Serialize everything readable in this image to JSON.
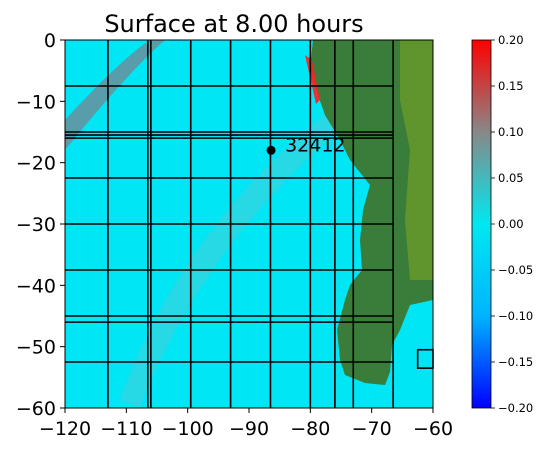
{
  "chart_data": {
    "type": "heatmap",
    "title": "Surface at 8.00 hours",
    "xlabel": "",
    "ylabel": "",
    "xlim": [
      -120,
      -60
    ],
    "ylim": [
      -60,
      0
    ],
    "x_ticks": [
      -120,
      -110,
      -100,
      -90,
      -80,
      -70,
      -60
    ],
    "y_ticks": [
      0,
      -10,
      -20,
      -30,
      -40,
      -50,
      -60
    ],
    "x_tick_labels": [
      "−120",
      "−110",
      "−100",
      "−90",
      "−80",
      "−70",
      "−60"
    ],
    "y_tick_labels": [
      "0",
      "−10",
      "−20",
      "−30",
      "−40",
      "−50",
      "−60"
    ],
    "colorbar": {
      "range": [
        -0.2,
        0.2
      ],
      "ticks": [
        0.2,
        0.15,
        0.1,
        0.05,
        0.0,
        -0.05,
        -0.1,
        -0.15,
        -0.2
      ],
      "tick_labels": [
        "0.20",
        "0.15",
        "0.10",
        "0.05",
        "0.00",
        "−0.05",
        "−0.10",
        "−0.15",
        "−0.20"
      ],
      "colors": [
        "#0000ff",
        "#00b4ff",
        "#00e8f0",
        "#888888",
        "#ff0000"
      ]
    },
    "gauge": {
      "label": "32412",
      "x": -86.4,
      "y": -17.98,
      "color": "#000000"
    },
    "grid_lines_x": [
      -113,
      -106.5,
      -106,
      -99.5,
      -93,
      -86.5,
      -80,
      -76,
      -73,
      -66.5
    ],
    "grid_lines_y": [
      -7.5,
      -15,
      -15.5,
      -16,
      -22.5,
      -30,
      -37.5,
      -45,
      -46,
      -52.5
    ],
    "highlight_box": {
      "x": [
        -62.5,
        -60
      ],
      "y": [
        -53.5,
        -50.5
      ]
    },
    "background_color": "#00e6f5",
    "land_color": "#3a7d3a"
  }
}
